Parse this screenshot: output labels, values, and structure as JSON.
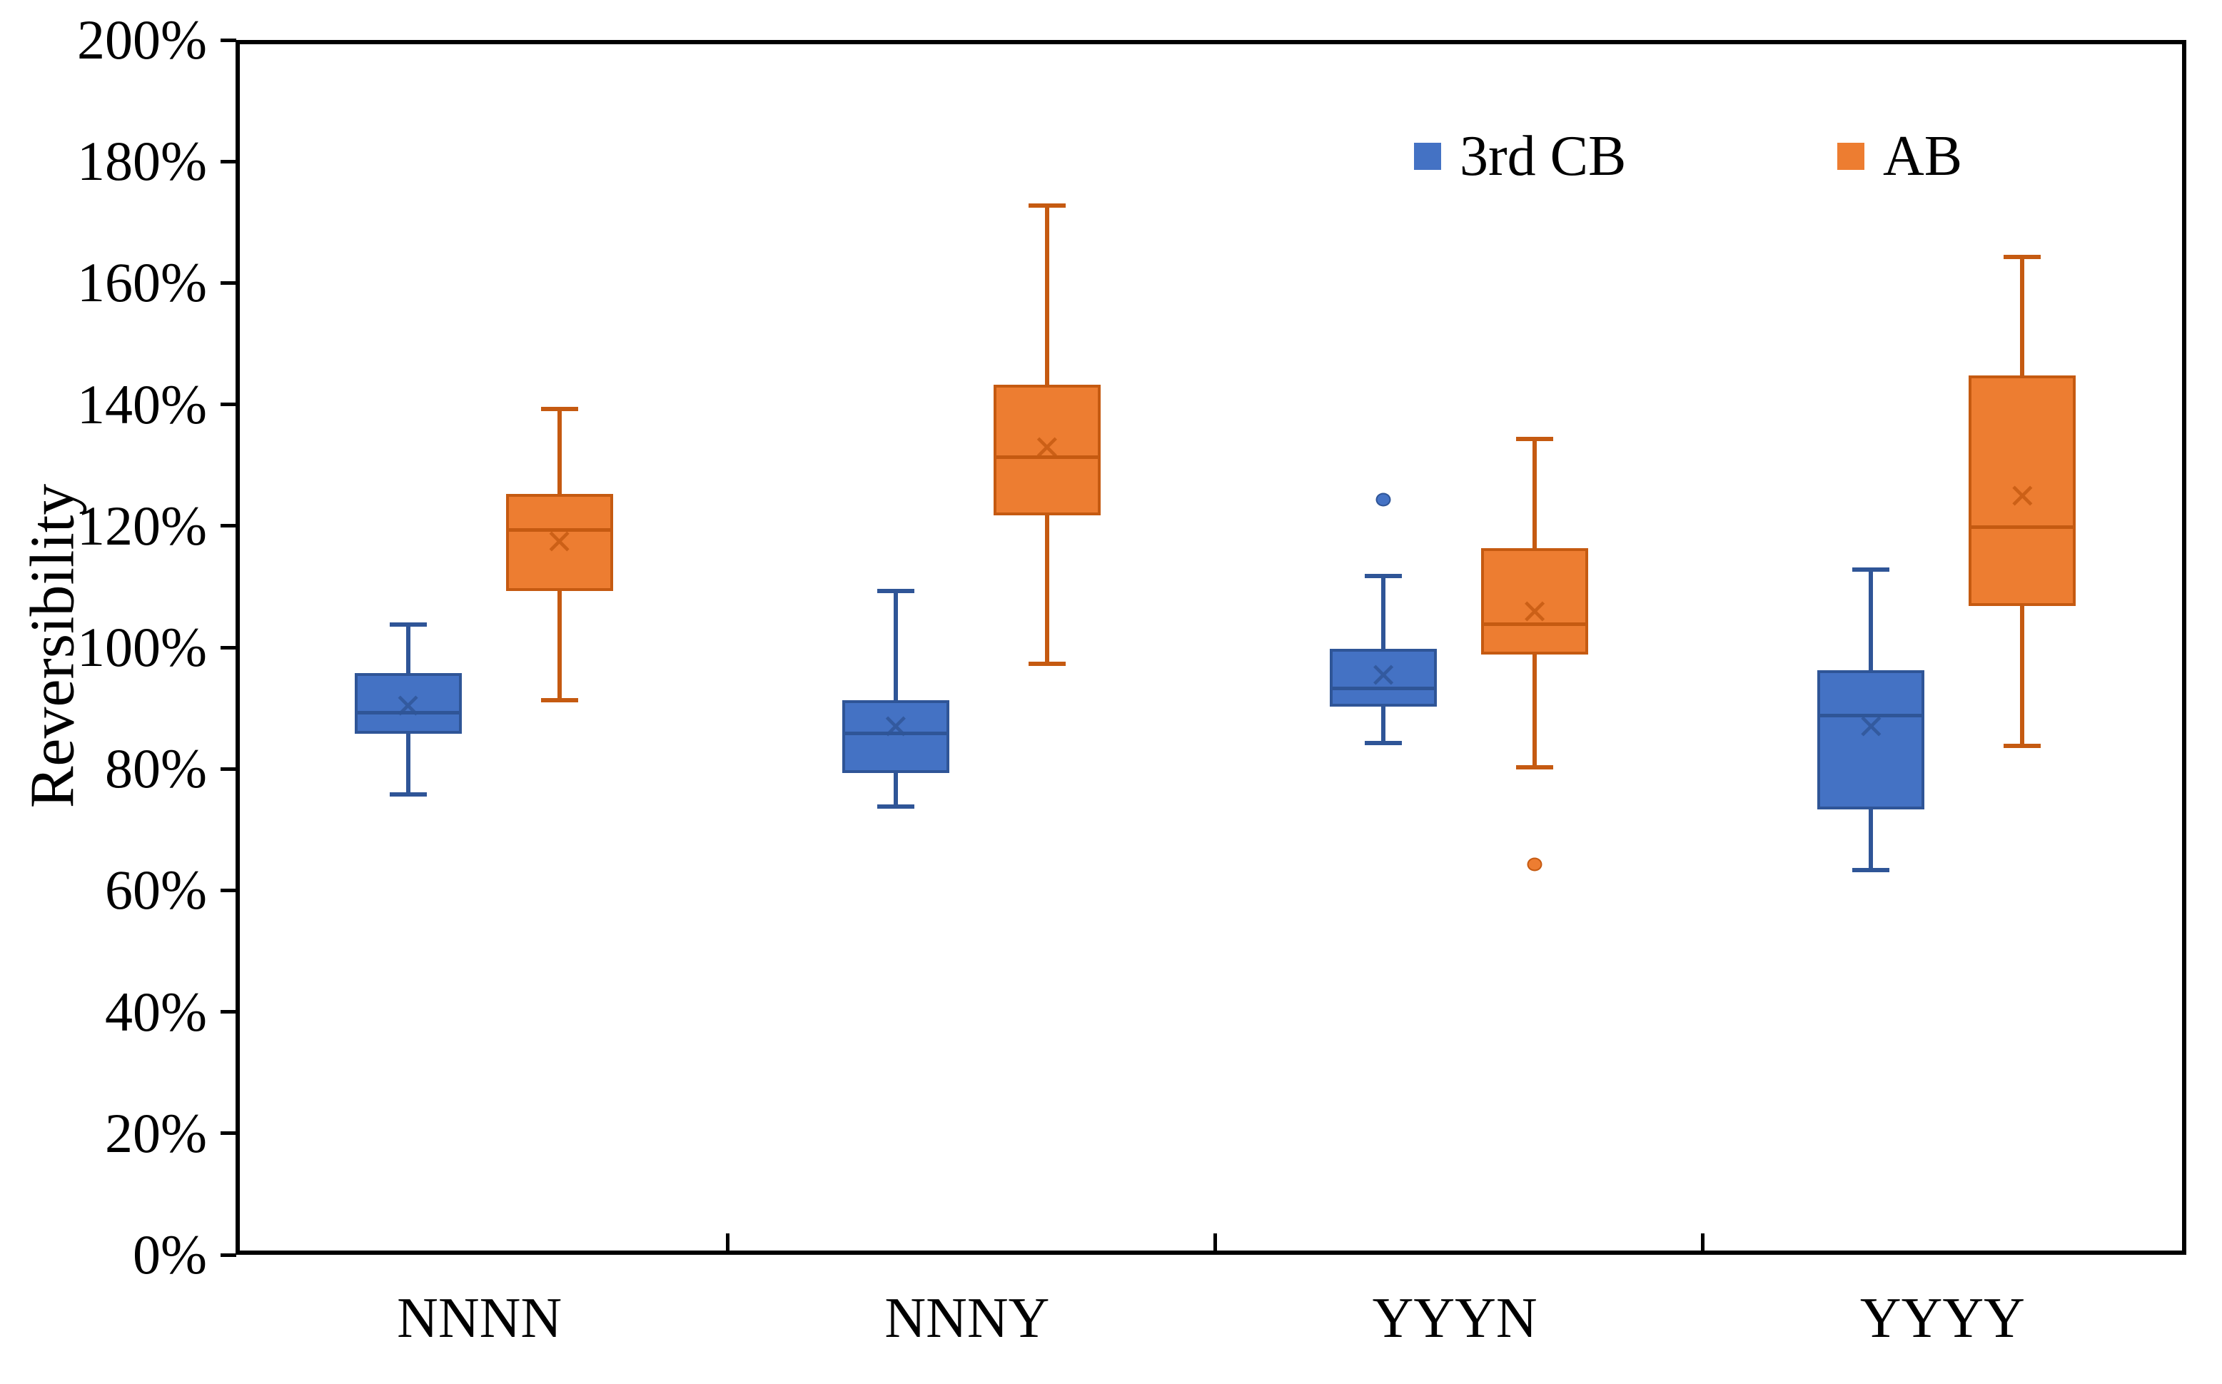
{
  "chart_data": {
    "type": "box",
    "title": "",
    "xlabel": "",
    "ylabel": "Reversibility",
    "ylim": [
      0,
      200
    ],
    "ytick_step": 20,
    "ytick_labels": [
      "0%",
      "20%",
      "40%",
      "60%",
      "80%",
      "100%",
      "120%",
      "140%",
      "160%",
      "180%",
      "200%"
    ],
    "categories": [
      "NNNN",
      "NNNY",
      "YYYN",
      "YYYY"
    ],
    "grid": false,
    "legend_position": "top-right-inside",
    "series": [
      {
        "name": "3rd CB",
        "fill_color": "#4472C4",
        "line_color": "#2F5597",
        "boxes": [
          {
            "category": "NNNN",
            "low": 76.5,
            "q1": 86.5,
            "median": 90,
            "mean": 91,
            "q3": 96.5,
            "high": 104.5,
            "outliers": []
          },
          {
            "category": "NNNY",
            "low": 74.5,
            "q1": 80,
            "median": 86.5,
            "mean": 87.5,
            "q3": 92,
            "high": 110,
            "outliers": []
          },
          {
            "category": "YYYN",
            "low": 85,
            "q1": 91,
            "median": 94,
            "mean": 96,
            "q3": 100.5,
            "high": 112.5,
            "outliers": [
              125
            ]
          },
          {
            "category": "YYYY",
            "low": 64,
            "q1": 74,
            "median": 89.5,
            "mean": 87.5,
            "q3": 97,
            "high": 113.5,
            "outliers": []
          }
        ]
      },
      {
        "name": "AB",
        "fill_color": "#ED7D31",
        "line_color": "#C55A11",
        "boxes": [
          {
            "category": "NNNN",
            "low": 92,
            "q1": 110,
            "median": 120,
            "mean": 118,
            "q3": 126,
            "high": 140,
            "outliers": []
          },
          {
            "category": "NNNY",
            "low": 98,
            "q1": 122.5,
            "median": 132,
            "mean": 133.5,
            "q3": 144,
            "high": 173.5,
            "outliers": []
          },
          {
            "category": "YYYN",
            "low": 81,
            "q1": 99.5,
            "median": 104.5,
            "mean": 106.5,
            "q3": 117,
            "high": 135,
            "outliers": [
              65
            ]
          },
          {
            "category": "YYYY",
            "low": 84.5,
            "q1": 107.5,
            "median": 120.5,
            "mean": 125.5,
            "q3": 145.5,
            "high": 165,
            "outliers": []
          }
        ]
      }
    ]
  },
  "legend": {
    "items": [
      {
        "label": "3rd CB",
        "color": "#4472C4"
      },
      {
        "label": "AB",
        "color": "#ED7D31"
      }
    ]
  },
  "axis_colors": {
    "frame": "#000000",
    "text": "#000000"
  }
}
